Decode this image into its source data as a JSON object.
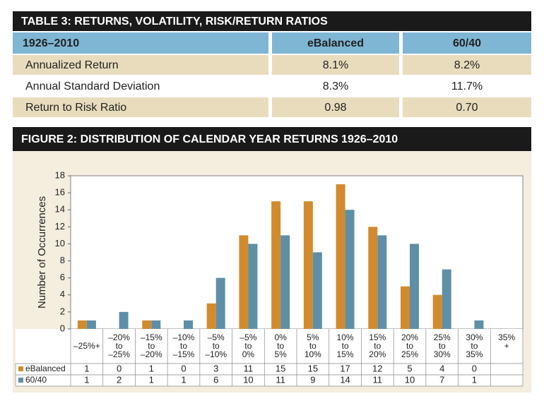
{
  "table": {
    "title": "TABLE 3: RETURNS, VOLATILITY, RISK/RETURN RATIOS",
    "header": [
      "1926–2010",
      "eBalanced",
      "60/40"
    ],
    "rows": [
      [
        "Annualized Return",
        "8.1%",
        "8.2%"
      ],
      [
        "Annual Standard Deviation",
        "8.3%",
        "11.7%"
      ],
      [
        "Return to Risk Ratio",
        "0.98",
        "0.70"
      ]
    ]
  },
  "chart_data": {
    "type": "bar",
    "title": "FIGURE 2: DISTRIBUTION OF CALENDAR YEAR RETURNS 1926–2010",
    "y_label": "Number of Occurrences",
    "categories": [
      [
        "–25%+"
      ],
      [
        "–20%",
        "to",
        "–25%"
      ],
      [
        "–15%",
        "to",
        "–20%"
      ],
      [
        "–10%",
        "to",
        "–15%"
      ],
      [
        "–5%",
        "to",
        "–10%"
      ],
      [
        "–5%",
        "to",
        "0%"
      ],
      [
        "0%",
        "to",
        "5%"
      ],
      [
        "5%",
        "to",
        "10%"
      ],
      [
        "10%",
        "to",
        "15%"
      ],
      [
        "15%",
        "to",
        "20%"
      ],
      [
        "20%",
        "to",
        "25%"
      ],
      [
        "25%",
        "to",
        "30%"
      ],
      [
        "30%",
        "to",
        "35%"
      ],
      [
        "35%",
        "+"
      ]
    ],
    "series": [
      {
        "name": "eBalanced",
        "color": "#d18b2e",
        "values": [
          1,
          0,
          1,
          0,
          3,
          11,
          15,
          15,
          17,
          12,
          5,
          4,
          0,
          null
        ]
      },
      {
        "name": "60/40",
        "color": "#5e8fa6",
        "values": [
          1,
          2,
          1,
          1,
          6,
          10,
          11,
          9,
          14,
          11,
          10,
          7,
          1,
          null
        ]
      }
    ],
    "ylim": [
      0,
      18
    ],
    "yticks": [
      0,
      2,
      4,
      6,
      8,
      10,
      12,
      14,
      16,
      18
    ],
    "grid": false
  }
}
